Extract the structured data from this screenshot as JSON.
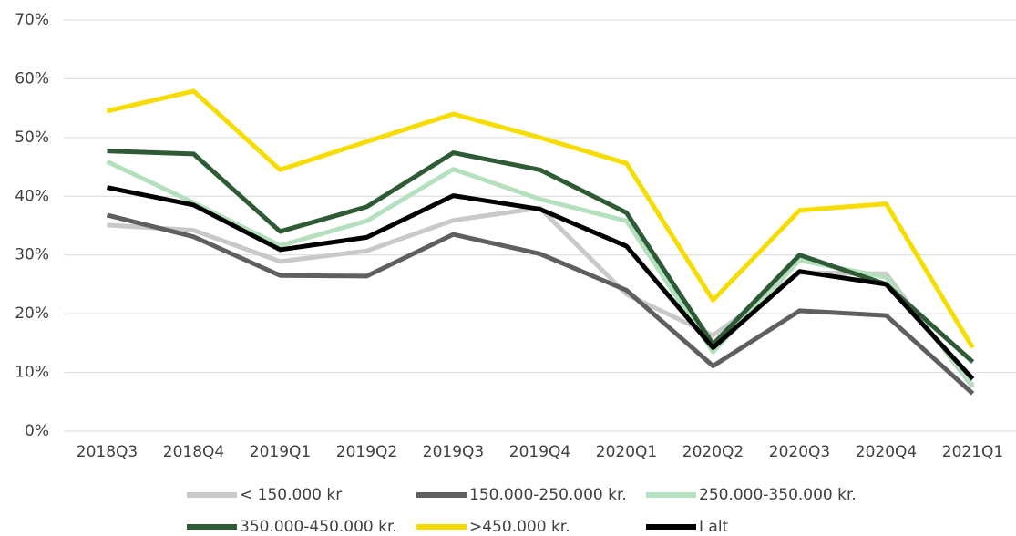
{
  "chart_data": {
    "type": "line",
    "categories": [
      "2018Q3",
      "2018Q4",
      "2019Q1",
      "2019Q2",
      "2019Q3",
      "2019Q4",
      "2020Q1",
      "2020Q2",
      "2020Q3",
      "2020Q4",
      "2021Q1"
    ],
    "series": [
      {
        "name": "< 150.000 kr",
        "color": "#c9c9c9",
        "values": [
          35.1,
          34.2,
          28.9,
          30.7,
          35.9,
          38.0,
          23.3,
          16.3,
          27.0,
          26.8,
          7.5
        ]
      },
      {
        "name": "150.000-250.000 kr.",
        "color": "#5f5f5f",
        "values": [
          36.8,
          33.1,
          26.5,
          26.4,
          33.5,
          30.2,
          24.0,
          11.1,
          20.5,
          19.7,
          6.4
        ]
      },
      {
        "name": "250.000-350.000 kr.",
        "color": "#b5e0bf",
        "values": [
          45.9,
          38.9,
          31.6,
          35.8,
          44.6,
          39.5,
          35.8,
          13.5,
          29.1,
          26.2,
          7.8
        ]
      },
      {
        "name": "350.000-450.000 kr.",
        "color": "#2f5a36",
        "values": [
          47.7,
          47.2,
          34.0,
          38.2,
          47.4,
          44.5,
          37.2,
          14.8,
          30.0,
          25.0,
          11.8
        ]
      },
      {
        "name": ">450.000 kr.",
        "color": "#f7dc00",
        "values": [
          54.5,
          57.9,
          44.5,
          49.3,
          54.0,
          50.0,
          45.6,
          22.3,
          37.6,
          38.7,
          14.2
        ]
      },
      {
        "name": "I alt",
        "color": "#000000",
        "values": [
          41.5,
          38.5,
          30.9,
          33.0,
          40.1,
          37.8,
          31.5,
          14.2,
          27.2,
          25.0,
          8.9
        ]
      }
    ],
    "ylim": [
      0,
      70
    ],
    "yticks": [
      {
        "value": 0,
        "label": "0%"
      },
      {
        "value": 10,
        "label": "10%"
      },
      {
        "value": 20,
        "label": "20%"
      },
      {
        "value": 30,
        "label": "30%"
      },
      {
        "value": 40,
        "label": "40%"
      },
      {
        "value": 50,
        "label": "50%"
      },
      {
        "value": 60,
        "label": "60%"
      },
      {
        "value": 70,
        "label": "70%"
      }
    ],
    "grid": true
  }
}
